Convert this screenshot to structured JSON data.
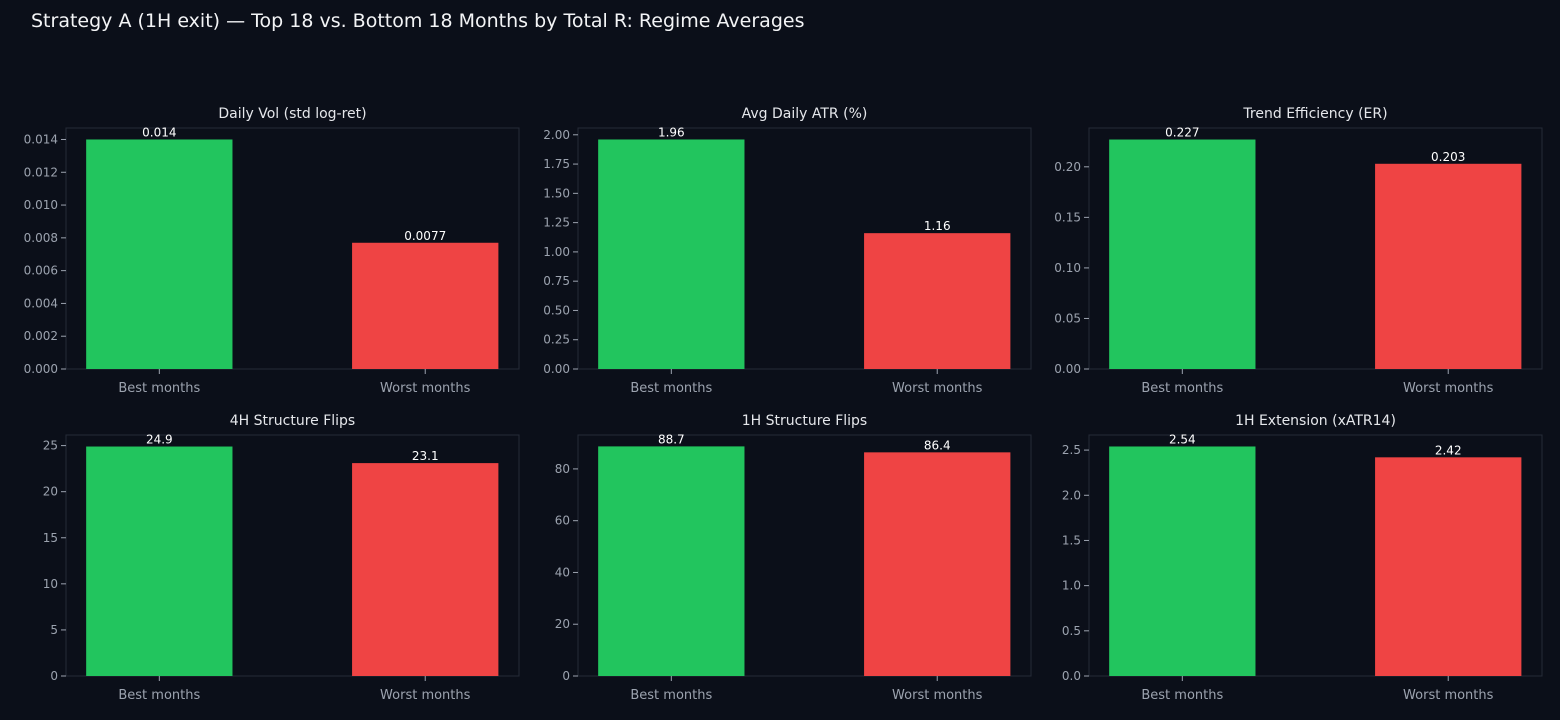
{
  "title": "Strategy A (1H exit) — Top 18 vs. Bottom 18 Months by Total R: Regime Averages",
  "colors": {
    "background": "#0b0f19",
    "axes_face": "#0b0f19",
    "axes_edge": "#262b38",
    "tick_label": "#9ca3af",
    "title_text": "#e5e7eb",
    "value_label": "#ffffff",
    "best": "#22c55e",
    "worst": "#ef4444"
  },
  "chart_data": [
    {
      "type": "bar",
      "title": "Daily Vol (std log-ret)",
      "categories": [
        "Best months",
        "Worst months"
      ],
      "values": [
        0.014,
        0.0077
      ],
      "value_labels": [
        "0.014",
        "0.0077"
      ],
      "ylim": [
        0,
        0.0147
      ],
      "yticks": [
        0,
        0.002,
        0.004,
        0.006,
        0.008,
        0.01,
        0.012,
        0.014
      ],
      "ytick_labels": [
        "0.000",
        "0.002",
        "0.004",
        "0.006",
        "0.008",
        "0.010",
        "0.012",
        "0.014"
      ]
    },
    {
      "type": "bar",
      "title": "Avg Daily ATR (%)",
      "categories": [
        "Best months",
        "Worst months"
      ],
      "values": [
        1.96,
        1.16
      ],
      "value_labels": [
        "1.96",
        "1.16"
      ],
      "ylim": [
        0,
        2.058
      ],
      "yticks": [
        0,
        0.25,
        0.5,
        0.75,
        1.0,
        1.25,
        1.5,
        1.75,
        2.0
      ],
      "ytick_labels": [
        "0.00",
        "0.25",
        "0.50",
        "0.75",
        "1.00",
        "1.25",
        "1.50",
        "1.75",
        "2.00"
      ]
    },
    {
      "type": "bar",
      "title": "Trend Efficiency (ER)",
      "categories": [
        "Best months",
        "Worst months"
      ],
      "values": [
        0.227,
        0.203
      ],
      "value_labels": [
        "0.227",
        "0.203"
      ],
      "ylim": [
        0,
        0.2384
      ],
      "yticks": [
        0,
        0.05,
        0.1,
        0.15,
        0.2
      ],
      "ytick_labels": [
        "0.00",
        "0.05",
        "0.10",
        "0.15",
        "0.20"
      ]
    },
    {
      "type": "bar",
      "title": "4H Structure Flips",
      "categories": [
        "Best months",
        "Worst months"
      ],
      "values": [
        24.9,
        23.1
      ],
      "value_labels": [
        "24.9",
        "23.1"
      ],
      "ylim": [
        0,
        26.15
      ],
      "yticks": [
        0,
        5,
        10,
        15,
        20,
        25
      ],
      "ytick_labels": [
        "0",
        "5",
        "10",
        "15",
        "20",
        "25"
      ]
    },
    {
      "type": "bar",
      "title": "1H Structure Flips",
      "categories": [
        "Best months",
        "Worst months"
      ],
      "values": [
        88.7,
        86.4
      ],
      "value_labels": [
        "88.7",
        "86.4"
      ],
      "ylim": [
        0,
        93.1
      ],
      "yticks": [
        0,
        20,
        40,
        60,
        80
      ],
      "ytick_labels": [
        "0",
        "20",
        "40",
        "60",
        "80"
      ]
    },
    {
      "type": "bar",
      "title": "1H Extension (xATR14)",
      "categories": [
        "Best months",
        "Worst months"
      ],
      "values": [
        2.54,
        2.42
      ],
      "value_labels": [
        "2.54",
        "2.42"
      ],
      "ylim": [
        0,
        2.667
      ],
      "yticks": [
        0,
        0.5,
        1.0,
        1.5,
        2.0,
        2.5
      ],
      "ytick_labels": [
        "0.0",
        "0.5",
        "1.0",
        "1.5",
        "2.0",
        "2.5"
      ]
    }
  ]
}
